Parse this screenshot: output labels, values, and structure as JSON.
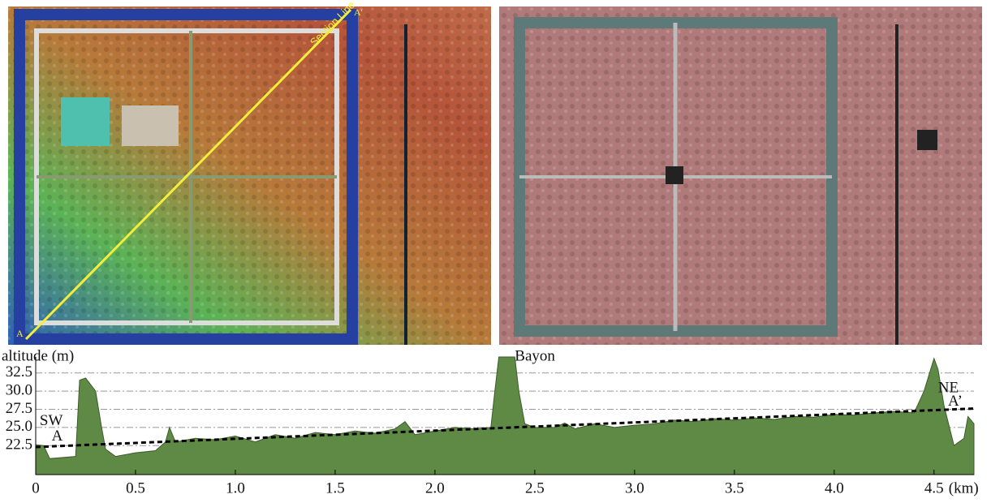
{
  "maps": {
    "section_label": "Section Line",
    "start_label": "A",
    "end_label": "A'"
  },
  "chart_data": {
    "type": "area",
    "ylabel": "altitude (m)",
    "xlabel": "(km)",
    "color": "#5f8a45",
    "x": [
      0,
      0.04,
      0.07,
      0.2,
      0.22,
      0.25,
      0.3,
      0.33,
      0.35,
      0.4,
      0.5,
      0.6,
      0.65,
      0.67,
      0.7,
      0.8,
      0.9,
      1.0,
      1.1,
      1.2,
      1.3,
      1.4,
      1.5,
      1.6,
      1.7,
      1.8,
      1.85,
      1.9,
      2.0,
      2.1,
      2.2,
      2.28,
      2.3,
      2.32,
      2.4,
      2.42,
      2.45,
      2.5,
      2.6,
      2.65,
      2.7,
      2.8,
      2.9,
      3.0,
      3.1,
      3.2,
      3.3,
      3.4,
      3.5,
      3.6,
      3.7,
      3.8,
      3.9,
      4.0,
      4.1,
      4.2,
      4.3,
      4.4,
      4.45,
      4.5,
      4.52,
      4.55,
      4.6,
      4.65,
      4.67,
      4.7
    ],
    "values": [
      22.6,
      22.5,
      20.7,
      21,
      31.5,
      31.8,
      30,
      25,
      22,
      21,
      21.5,
      21.8,
      23,
      25,
      23,
      23.5,
      23.3,
      23.8,
      23,
      24,
      23.5,
      24.3,
      24,
      24.5,
      24.2,
      24.8,
      25.8,
      24,
      24.5,
      25,
      24.8,
      25,
      30,
      34.7,
      34.7,
      30,
      25.5,
      25,
      25,
      25.6,
      24.8,
      25.5,
      25,
      25.3,
      25.5,
      26,
      25.8,
      26.2,
      26,
      26.3,
      26.1,
      26.5,
      26.4,
      26.8,
      26.7,
      27,
      27.2,
      27,
      30,
      34.5,
      33,
      28,
      22.5,
      23.5,
      26.5,
      25.5
    ],
    "trend": {
      "x": [
        0,
        4.7
      ],
      "values": [
        22.3,
        27.6
      ]
    },
    "xlim": [
      0,
      4.7
    ],
    "ylim": [
      18.5,
      34.7
    ],
    "xticks": [
      0,
      0.5,
      {
        "value": 1,
        "label": "1.0"
      },
      1.5,
      {
        "value": 2,
        "label": "2.0"
      },
      2.5,
      {
        "value": 3,
        "label": "3.0"
      },
      3.5,
      {
        "value": 4,
        "label": "4.0"
      },
      4.5
    ],
    "yticks": [
      {
        "value": 22.5,
        "label": "22.5"
      },
      {
        "value": 25,
        "label": "25.0"
      },
      27.5,
      {
        "value": 30,
        "label": "30.0"
      },
      32.5
    ],
    "grid": true,
    "annotations": [
      {
        "text": "Bayon",
        "x": 2.4,
        "y": 34.7
      },
      {
        "text": "SW",
        "x": 0.02,
        "y": 25.8
      },
      {
        "text": "A",
        "x": 0.08,
        "y": 23.7
      },
      {
        "text": "NE",
        "x": 4.52,
        "y": 30.3
      },
      {
        "text": "A’",
        "x": 4.57,
        "y": 28.5
      }
    ]
  }
}
